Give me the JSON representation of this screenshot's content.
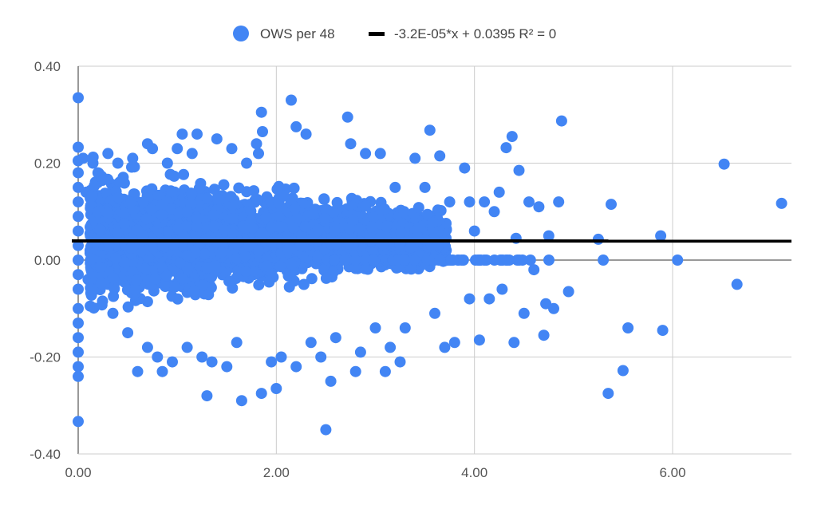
{
  "chart_data": {
    "type": "scatter",
    "title": "",
    "xlabel": "",
    "ylabel": "",
    "xlim": [
      0,
      7.2
    ],
    "ylim": [
      -0.4,
      0.4
    ],
    "x_ticks": [
      "0.00",
      "2.00",
      "4.00",
      "6.00"
    ],
    "x_tick_values": [
      0,
      2,
      4,
      6
    ],
    "y_ticks": [
      "0.40",
      "0.20",
      "0.00",
      "-0.20",
      "-0.40"
    ],
    "y_tick_values": [
      0.4,
      0.2,
      0,
      -0.2,
      -0.4
    ],
    "grid": true,
    "legend": "top",
    "series": [
      {
        "name": "OWS per 48",
        "color": "#4285f4",
        "points": [
          [
            0.0,
            0.335
          ],
          [
            0.0,
            0.233
          ],
          [
            0.0,
            0.205
          ],
          [
            0.0,
            0.18
          ],
          [
            0.0,
            0.15
          ],
          [
            0.0,
            0.12
          ],
          [
            0.0,
            0.09
          ],
          [
            0.0,
            0.06
          ],
          [
            0.0,
            0.03
          ],
          [
            0.0,
            0.0
          ],
          [
            0.0,
            -0.03
          ],
          [
            0.0,
            -0.06
          ],
          [
            0.0,
            -0.1
          ],
          [
            0.0,
            -0.13
          ],
          [
            0.0,
            -0.16
          ],
          [
            0.0,
            -0.19
          ],
          [
            0.0,
            -0.22
          ],
          [
            0.0,
            -0.24
          ],
          [
            0.0,
            -0.333
          ],
          [
            0.05,
            0.21
          ],
          [
            0.08,
            0.14
          ],
          [
            0.1,
            -0.04
          ],
          [
            0.12,
            0.02
          ],
          [
            0.2,
            0.18
          ],
          [
            0.25,
            0.1
          ],
          [
            0.3,
            0.22
          ],
          [
            0.3,
            -0.05
          ],
          [
            0.35,
            -0.11
          ],
          [
            0.4,
            0.2
          ],
          [
            0.45,
            0.05
          ],
          [
            0.5,
            -0.15
          ],
          [
            0.55,
            0.21
          ],
          [
            0.6,
            -0.23
          ],
          [
            0.6,
            0.12
          ],
          [
            0.7,
            0.24
          ],
          [
            0.7,
            -0.18
          ],
          [
            0.75,
            0.23
          ],
          [
            0.8,
            -0.2
          ],
          [
            0.85,
            -0.23
          ],
          [
            0.9,
            0.2
          ],
          [
            0.95,
            -0.21
          ],
          [
            1.0,
            0.23
          ],
          [
            1.05,
            0.26
          ],
          [
            1.1,
            -0.18
          ],
          [
            1.15,
            0.22
          ],
          [
            1.2,
            0.26
          ],
          [
            1.25,
            -0.2
          ],
          [
            1.3,
            -0.28
          ],
          [
            1.35,
            -0.21
          ],
          [
            1.4,
            0.25
          ],
          [
            1.5,
            -0.22
          ],
          [
            1.55,
            0.23
          ],
          [
            1.6,
            -0.17
          ],
          [
            1.65,
            -0.29
          ],
          [
            1.7,
            0.2
          ],
          [
            1.8,
            0.24
          ],
          [
            1.82,
            0.22
          ],
          [
            1.85,
            0.305
          ],
          [
            1.86,
            0.265
          ],
          [
            1.85,
            -0.275
          ],
          [
            1.95,
            -0.21
          ],
          [
            2.0,
            -0.265
          ],
          [
            2.05,
            -0.2
          ],
          [
            2.15,
            0.33
          ],
          [
            2.2,
            0.275
          ],
          [
            2.2,
            -0.22
          ],
          [
            2.3,
            0.26
          ],
          [
            2.35,
            -0.17
          ],
          [
            2.45,
            -0.2
          ],
          [
            2.5,
            -0.35
          ],
          [
            2.55,
            -0.25
          ],
          [
            2.6,
            -0.16
          ],
          [
            2.72,
            0.295
          ],
          [
            2.75,
            0.24
          ],
          [
            2.8,
            -0.23
          ],
          [
            2.85,
            -0.19
          ],
          [
            2.9,
            0.22
          ],
          [
            3.0,
            -0.14
          ],
          [
            3.05,
            0.22
          ],
          [
            3.1,
            -0.23
          ],
          [
            3.15,
            -0.18
          ],
          [
            3.2,
            0.15
          ],
          [
            3.25,
            -0.21
          ],
          [
            3.3,
            -0.14
          ],
          [
            3.4,
            0.21
          ],
          [
            3.5,
            0.15
          ],
          [
            3.55,
            0.268
          ],
          [
            3.6,
            -0.11
          ],
          [
            3.65,
            0.215
          ],
          [
            3.7,
            -0.18
          ],
          [
            3.75,
            0.12
          ],
          [
            3.8,
            -0.17
          ],
          [
            3.9,
            0.19
          ],
          [
            3.95,
            0.12
          ],
          [
            3.95,
            -0.08
          ],
          [
            4.0,
            0.06
          ],
          [
            4.05,
            -0.165
          ],
          [
            4.1,
            0.12
          ],
          [
            4.15,
            -0.08
          ],
          [
            4.2,
            0.1
          ],
          [
            4.25,
            0.14
          ],
          [
            4.28,
            -0.06
          ],
          [
            4.32,
            0.232
          ],
          [
            4.38,
            0.255
          ],
          [
            4.4,
            -0.17
          ],
          [
            4.42,
            0.045
          ],
          [
            4.45,
            0.185
          ],
          [
            4.5,
            -0.11
          ],
          [
            4.55,
            0.12
          ],
          [
            4.6,
            -0.02
          ],
          [
            4.65,
            0.11
          ],
          [
            4.7,
            -0.155
          ],
          [
            4.72,
            -0.09
          ],
          [
            4.75,
            0.05
          ],
          [
            4.8,
            -0.1
          ],
          [
            4.85,
            0.12
          ],
          [
            4.88,
            0.287
          ],
          [
            4.95,
            -0.065
          ],
          [
            5.25,
            0.043
          ],
          [
            5.3,
            0.0
          ],
          [
            5.35,
            -0.275
          ],
          [
            5.38,
            0.115
          ],
          [
            5.5,
            -0.228
          ],
          [
            5.55,
            -0.14
          ],
          [
            5.88,
            0.05
          ],
          [
            5.9,
            -0.145
          ],
          [
            6.05,
            0.0
          ],
          [
            6.52,
            0.198
          ],
          [
            6.65,
            -0.05
          ],
          [
            7.1,
            0.117
          ]
        ]
      },
      {
        "name": "-3.2E-05*x + 0.0395 R² = 0",
        "color": "#000000",
        "type": "trendline",
        "slope": -3.2e-05,
        "intercept": 0.0395
      }
    ]
  }
}
